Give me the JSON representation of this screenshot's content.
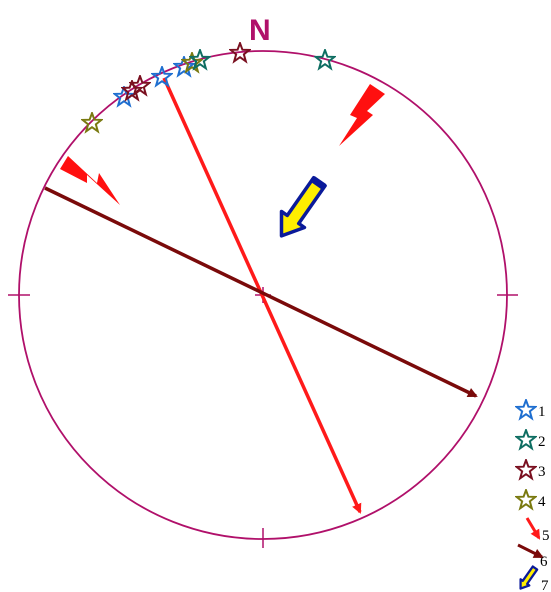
{
  "diagram": {
    "north_label": "N",
    "colors": {
      "circle": "#b0106a",
      "north": "#b0106a",
      "star_blue": "#1f6fd0",
      "star_teal": "#0f6e62",
      "star_maroon": "#7a1020",
      "star_olive": "#7a7a10",
      "arrow_red": "#ff1a1a",
      "arrow_maroon": "#7a0a0a",
      "lightning": "#ff1010",
      "pencil_fill": "#ffee00",
      "pencil_outline": "#0a1a9a"
    },
    "icons": [
      "star-icon",
      "arrow-icon",
      "lightning-icon",
      "pencil-arrow-icon"
    ],
    "legend": [
      {
        "label": "1",
        "icon": "star-icon",
        "color": "star_blue"
      },
      {
        "label": "2",
        "icon": "star-icon",
        "color": "star_teal"
      },
      {
        "label": "3",
        "icon": "star-icon",
        "color": "star_maroon"
      },
      {
        "label": "4",
        "icon": "star-icon",
        "color": "star_olive"
      },
      {
        "label": "5",
        "icon": "arrow-icon",
        "color": "arrow_red"
      },
      {
        "label": "6",
        "icon": "arrow-icon",
        "color": "arrow_maroon"
      },
      {
        "label": "7",
        "icon": "pencil-arrow-icon",
        "color": "pencil_fill"
      }
    ]
  }
}
